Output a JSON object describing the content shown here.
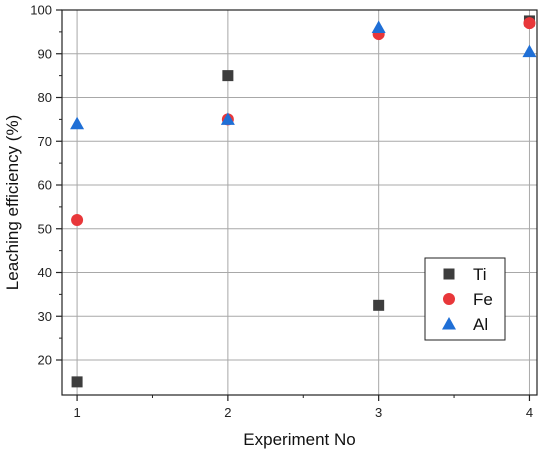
{
  "chart_data": {
    "type": "scatter",
    "title": "",
    "xlabel": "Experiment No",
    "ylabel": "Leaching efficiency (%)",
    "xlim": [
      0.9,
      4.05
    ],
    "ylim": [
      12,
      100
    ],
    "xticks": [
      1,
      2,
      3,
      4
    ],
    "xtick_labels": [
      "1",
      "2",
      "3",
      "4"
    ],
    "yticks": [
      20,
      30,
      40,
      50,
      60,
      70,
      80,
      90,
      100
    ],
    "ytick_labels": [
      "20",
      "30",
      "40",
      "50",
      "60",
      "70",
      "80",
      "90",
      "100"
    ],
    "grid": true,
    "legend_position": "bottom-right",
    "series": [
      {
        "name": "Ti",
        "marker": "square",
        "color": "#3d3d3d",
        "x": [
          1,
          2,
          3,
          4
        ],
        "y": [
          15,
          85,
          32.5,
          97.5
        ]
      },
      {
        "name": "Fe",
        "marker": "circle",
        "color": "#e8373a",
        "x": [
          1,
          2,
          3,
          4
        ],
        "y": [
          52,
          75,
          94.5,
          97
        ]
      },
      {
        "name": "Al",
        "marker": "triangle",
        "color": "#1f6fd6",
        "x": [
          1,
          2,
          3,
          4
        ],
        "y": [
          74,
          75,
          96,
          90.5
        ]
      }
    ]
  }
}
